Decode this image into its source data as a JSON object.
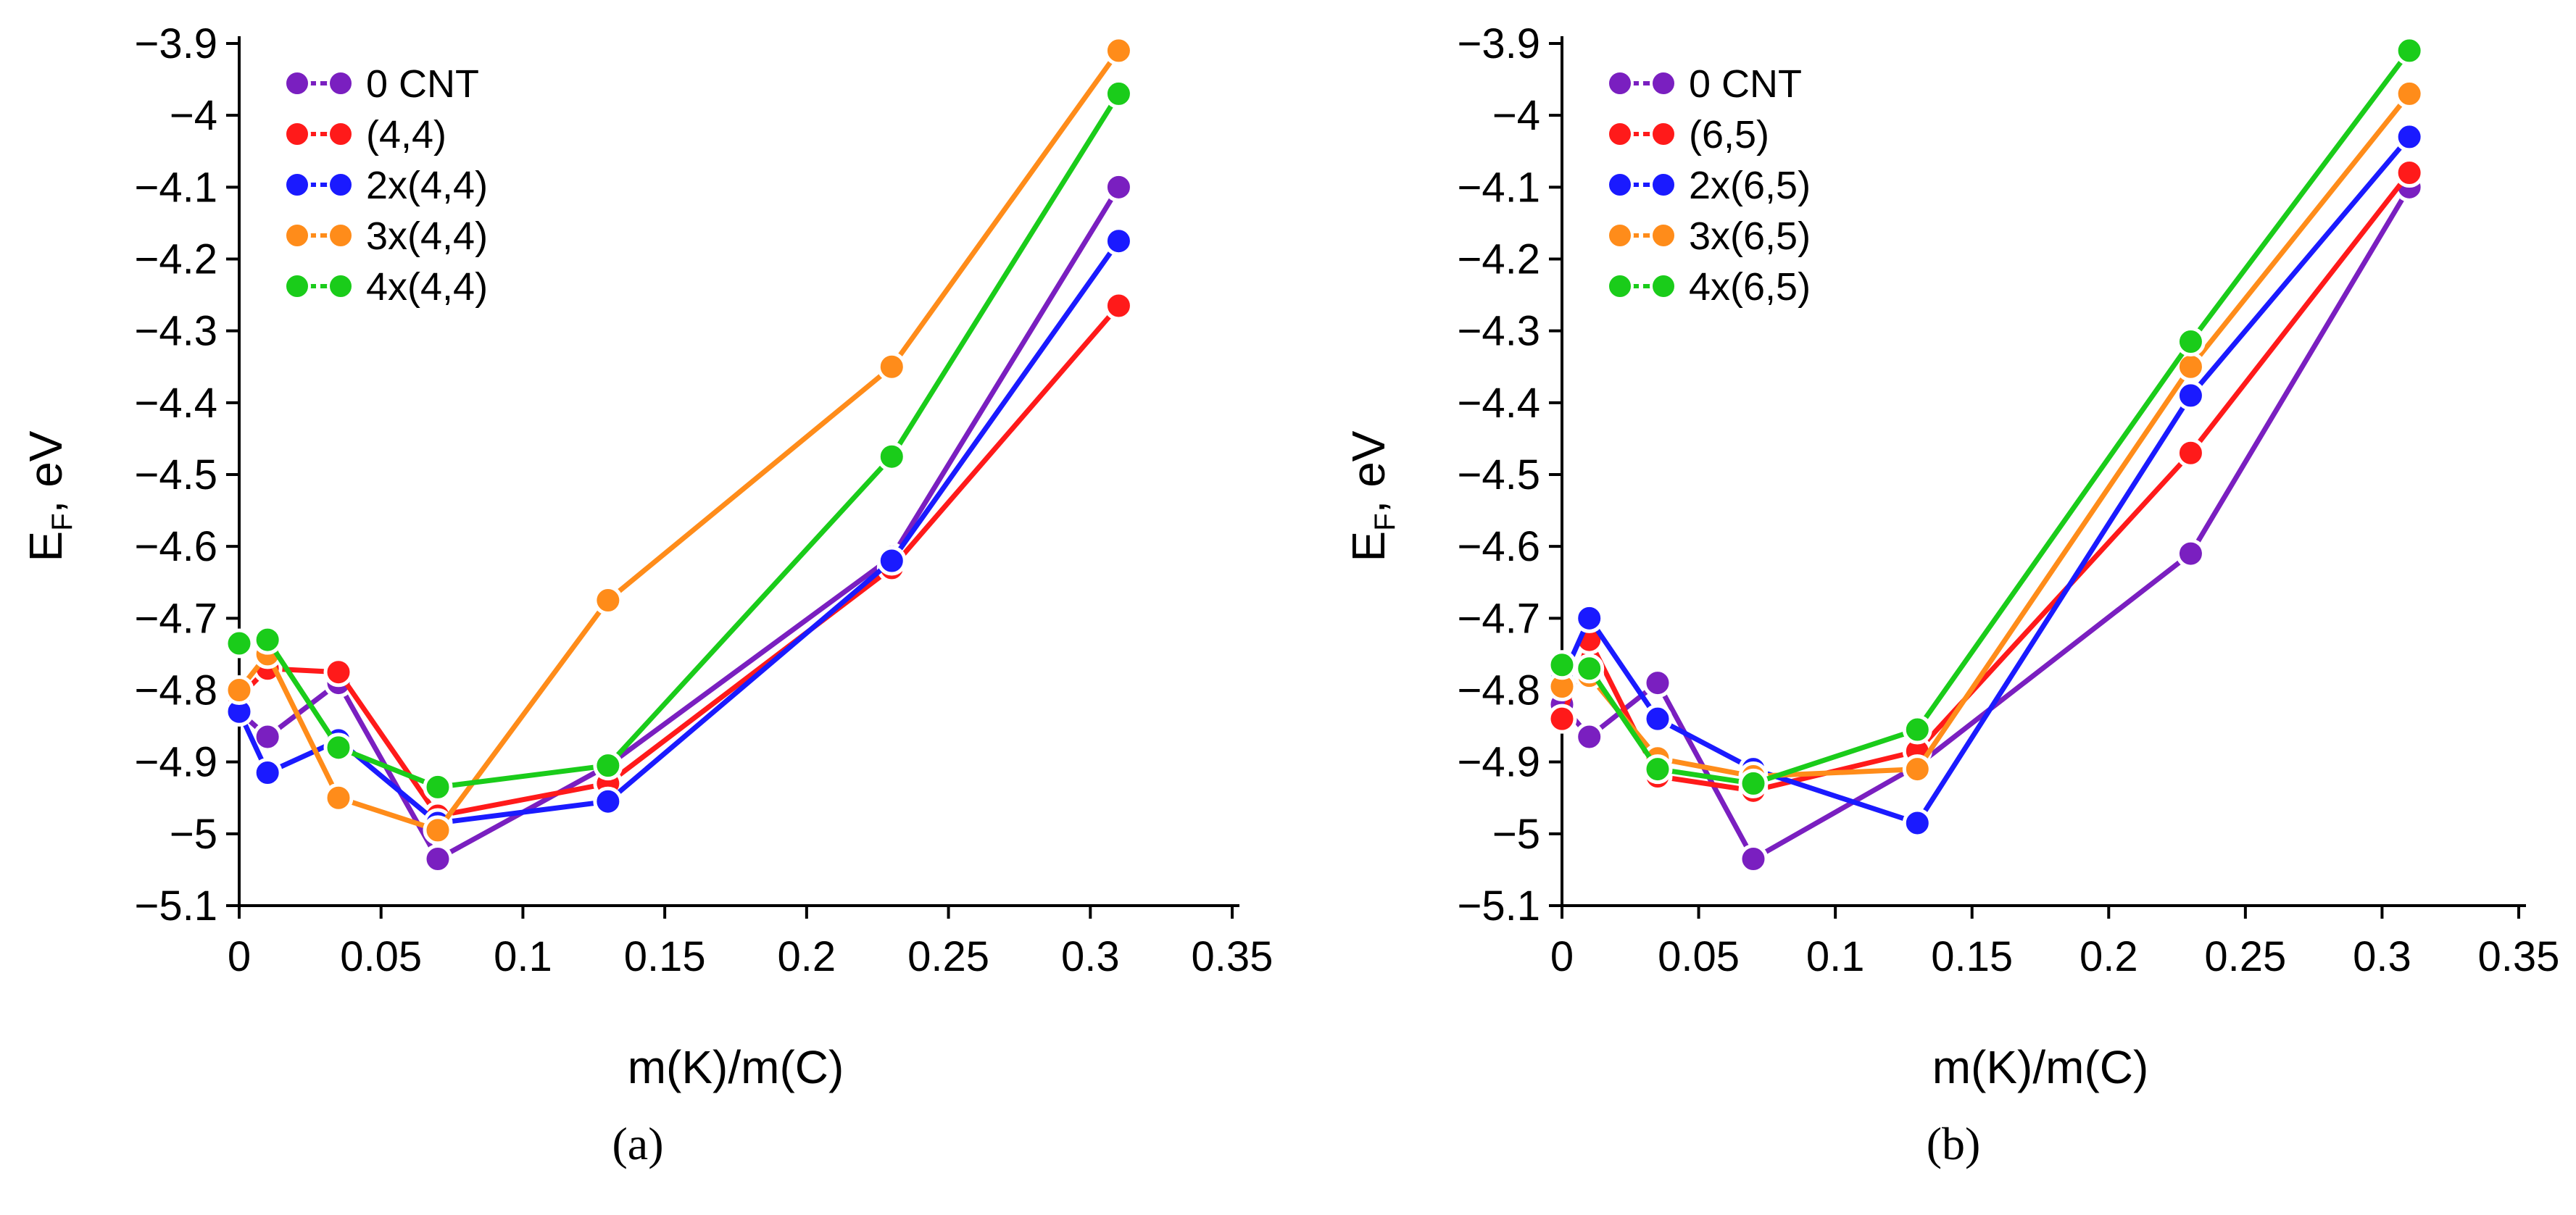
{
  "chart_data": [
    {
      "id": "a",
      "type": "line",
      "caption": "(a)",
      "xlabel": "m(K)/m(C)",
      "ylabel": "E",
      "ylabel_sub": "F",
      "ylabel_unit": ", eV",
      "xlim": [
        0,
        0.35
      ],
      "ylim": [
        -5.1,
        -3.9
      ],
      "xticks": [
        "0",
        "0.05",
        "0.1",
        "0.15",
        "0.2",
        "0.25",
        "0.3",
        "0.35"
      ],
      "yticks": [
        "-3.9",
        "-4",
        "-4.1",
        "-4.2",
        "-4.3",
        "-4.4",
        "-4.5",
        "-4.6",
        "-4.7",
        "-4.8",
        "-4.9",
        "-5",
        "-5.1"
      ],
      "x": [
        0,
        0.01,
        0.035,
        0.07,
        0.13,
        0.23,
        0.31
      ],
      "series": [
        {
          "name": "0 CNT",
          "color": "#7a1fc0",
          "values": [
            -4.83,
            -4.865,
            -4.79,
            -5.035,
            -4.905,
            -4.615,
            -4.1
          ]
        },
        {
          "name": "(4,4)",
          "color": "#ff1a1a",
          "values": [
            -4.81,
            -4.77,
            -4.775,
            -4.975,
            -4.93,
            -4.63,
            -4.265
          ]
        },
        {
          "name": "2x(4,4)",
          "color": "#1a1aff",
          "values": [
            -4.83,
            -4.915,
            -4.87,
            -4.985,
            -4.955,
            -4.62,
            -4.175
          ]
        },
        {
          "name": "3x(4,4)",
          "color": "#ff8c1a",
          "values": [
            -4.8,
            -4.75,
            -4.95,
            -4.995,
            -4.675,
            -4.35,
            -3.91
          ]
        },
        {
          "name": "4x(4,4)",
          "color": "#1acc1a",
          "values": [
            -4.735,
            -4.73,
            -4.88,
            -4.935,
            -4.905,
            -4.475,
            -3.97
          ]
        }
      ]
    },
    {
      "id": "b",
      "type": "line",
      "caption": "(b)",
      "xlabel": "m(K)/m(C)",
      "ylabel": "E",
      "ylabel_sub": "F",
      "ylabel_unit": ", eV",
      "xlim": [
        0,
        0.35
      ],
      "ylim": [
        -5.1,
        -3.9
      ],
      "xticks": [
        "0",
        "0.05",
        "0.1",
        "0.15",
        "0.2",
        "0.25",
        "0.3",
        "0.35"
      ],
      "yticks": [
        "-3.9",
        "-4",
        "-4.1",
        "-4.2",
        "-4.3",
        "-4.4",
        "-4.5",
        "-4.6",
        "-4.7",
        "-4.8",
        "-4.9",
        "-5",
        "-5.1"
      ],
      "x": [
        0,
        0.01,
        0.035,
        0.07,
        0.13,
        0.23,
        0.31
      ],
      "series": [
        {
          "name": "0 CNT",
          "color": "#7a1fc0",
          "values": [
            -4.82,
            -4.865,
            -4.79,
            -5.035,
            -4.905,
            -4.61,
            -4.1
          ]
        },
        {
          "name": "(6,5)",
          "color": "#ff1a1a",
          "values": [
            -4.84,
            -4.73,
            -4.92,
            -4.94,
            -4.885,
            -4.47,
            -4.08
          ]
        },
        {
          "name": "2x(6,5)",
          "color": "#1a1aff",
          "values": [
            -4.785,
            -4.7,
            -4.84,
            -4.91,
            -4.985,
            -4.39,
            -4.03
          ]
        },
        {
          "name": "3x(6,5)",
          "color": "#ff8c1a",
          "values": [
            -4.795,
            -4.78,
            -4.895,
            -4.92,
            -4.91,
            -4.35,
            -3.97
          ]
        },
        {
          "name": "4x(6,5)",
          "color": "#1acc1a",
          "values": [
            -4.765,
            -4.77,
            -4.91,
            -4.93,
            -4.855,
            -4.315,
            -3.91
          ]
        }
      ]
    }
  ]
}
